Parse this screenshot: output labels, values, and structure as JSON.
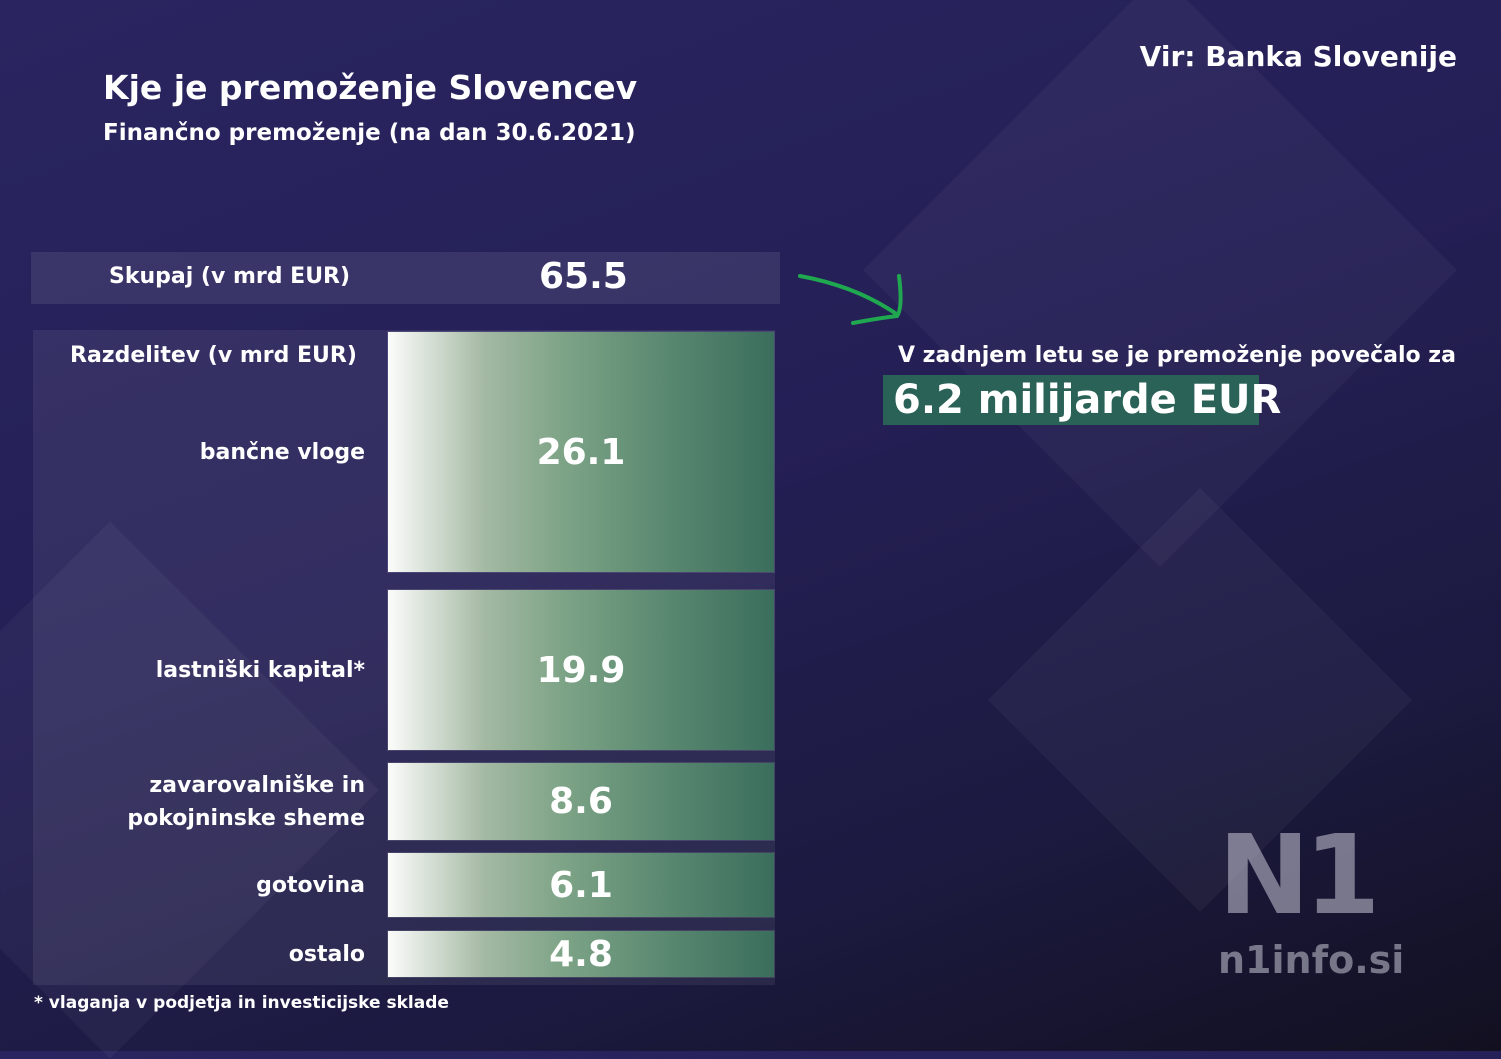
{
  "header": {
    "title": "Kje je premoženje Slovencev",
    "subtitle": "Finančno premoženje (na dan 30.6.2021)",
    "source": "Vir: Banka Slovenije"
  },
  "total": {
    "label": "Skupaj (v mrd EUR)",
    "value": "65.5"
  },
  "growth": {
    "text": "V zadnjem letu se je premoženje povečalo za",
    "value": "6.2 milijarde EUR"
  },
  "footnote": "* vlaganja v podjetja in investicijske sklade",
  "logo": {
    "mark": "N1",
    "url": "n1info.si"
  },
  "colors": {
    "accent": "#2a6257",
    "arrow": "#1fa84f",
    "bar_end": "#3a6e5c",
    "background": "#241f55"
  },
  "chart_data": {
    "type": "bar",
    "orientation": "horizontal-blocks",
    "title": "Razdelitev (v mrd EUR)",
    "categories": [
      "bančne vloge",
      "lastniški kapital*",
      "zavarovalniške in pokojninske sheme",
      "gotovina",
      "ostalo"
    ],
    "category_lines": [
      [
        "bančne vloge"
      ],
      [
        "lastniški kapital*"
      ],
      [
        "zavarovalniške in",
        "pokojninske sheme"
      ],
      [
        "gotovina"
      ],
      [
        "ostalo"
      ]
    ],
    "values": [
      26.1,
      19.9,
      8.6,
      6.1,
      4.8
    ],
    "value_labels": [
      "26.1",
      "19.9",
      "8.6",
      "6.1",
      "4.8"
    ],
    "total": 65.5
  }
}
